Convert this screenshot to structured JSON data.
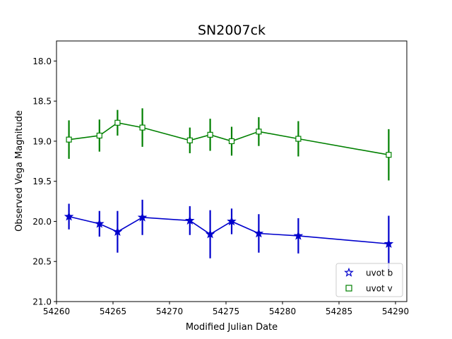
{
  "chart_data": {
    "type": "line",
    "title": "SN2007ck",
    "xlabel": "Modified Julian Date",
    "ylabel": "Observed Vega Magnitude",
    "xlim": [
      54260,
      54291
    ],
    "ylim": [
      21.0,
      17.75
    ],
    "y_inverted": true,
    "grid": false,
    "legend_position": "lower-right",
    "xticks": [
      54260,
      54265,
      54270,
      54275,
      54280,
      54285,
      54290
    ],
    "yticks": [
      18.0,
      18.5,
      19.0,
      19.5,
      20.0,
      20.5,
      21.0
    ],
    "xtick_labels": [
      "54260",
      "54265",
      "54270",
      "54275",
      "54280",
      "54285",
      "54290"
    ],
    "ytick_labels": [
      "18.0",
      "18.5",
      "19.0",
      "19.5",
      "20.0",
      "20.5",
      "21.0"
    ],
    "series": [
      {
        "name": "uvot b",
        "marker": "star",
        "color": "#0000cc",
        "x": [
          54261.1,
          54263.8,
          54265.4,
          54267.6,
          54271.8,
          54273.6,
          54275.5,
          54277.9,
          54281.4,
          54289.4
        ],
        "y": [
          19.94,
          20.03,
          20.13,
          19.95,
          19.99,
          20.16,
          20.0,
          20.15,
          20.18,
          20.28
        ],
        "err": [
          0.16,
          0.16,
          0.26,
          0.22,
          0.18,
          0.3,
          0.16,
          0.24,
          0.22,
          0.35
        ]
      },
      {
        "name": "uvot v",
        "marker": "square",
        "color": "#008000",
        "x": [
          54261.1,
          54263.8,
          54265.4,
          54267.6,
          54271.8,
          54273.6,
          54275.5,
          54277.9,
          54281.4,
          54289.4
        ],
        "y": [
          18.98,
          18.93,
          18.77,
          18.83,
          18.99,
          18.92,
          19.0,
          18.88,
          18.97,
          19.17
        ],
        "err": [
          0.24,
          0.2,
          0.16,
          0.24,
          0.16,
          0.2,
          0.18,
          0.18,
          0.22,
          0.32
        ]
      }
    ]
  }
}
